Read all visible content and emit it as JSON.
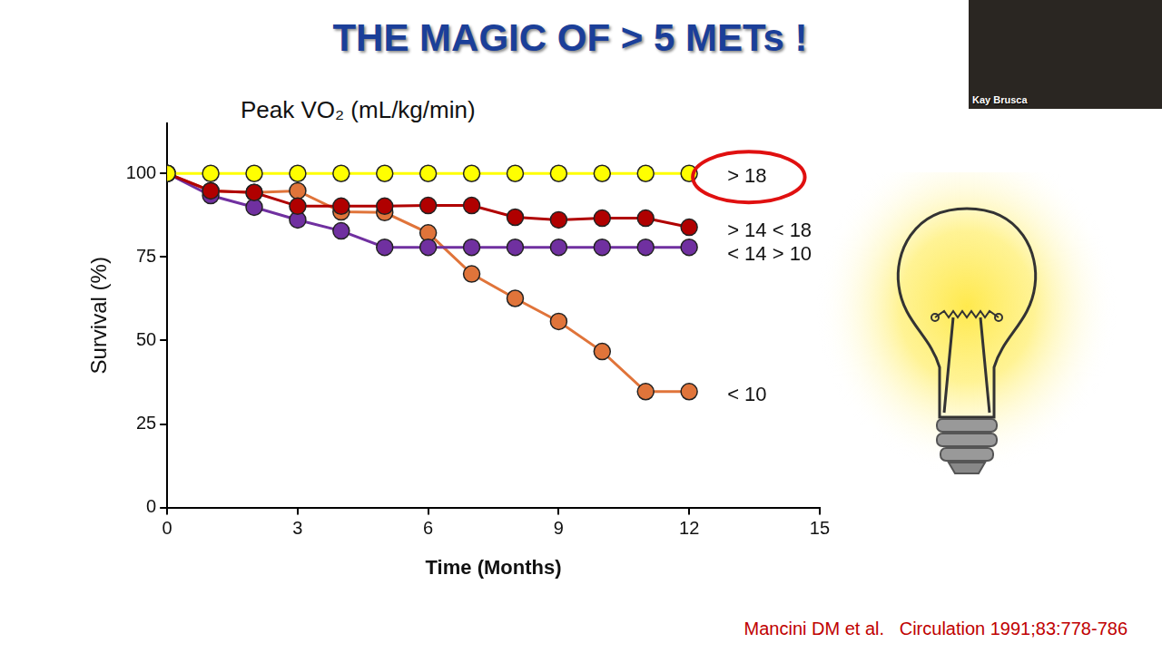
{
  "chart_data": {
    "type": "line",
    "title": "THE MAGIC OF > 5 METs !",
    "subtitle": "Peak VO₂ (mL/kg/min)",
    "x_label": "Time (Months)",
    "y_label": "Survival (%)",
    "source": "Mancini DM et al.   Circulation 1991;83:778-786",
    "speaker": "Kay Brusca",
    "x": [
      0,
      1,
      2,
      3,
      4,
      5,
      6,
      7,
      8,
      9,
      10,
      11,
      12
    ],
    "series": [
      {
        "name": "> 18",
        "color": "#ffff00",
        "values": [
          100,
          100,
          100,
          100,
          100,
          100,
          100,
          100,
          100,
          100,
          100,
          100,
          100
        ]
      },
      {
        "name": "> 14 < 18",
        "color": "#b00000",
        "values": [
          100,
          94.8,
          94.3,
          90.2,
          90.2,
          90.2,
          90.4,
          90.4,
          86.9,
          86.1,
          86.6,
          86.6,
          83.9
        ]
      },
      {
        "name": "< 14 > 10",
        "color": "#7030a0",
        "values": [
          100,
          93.4,
          89.9,
          86.1,
          82.8,
          77.9,
          77.9,
          77.9,
          77.9,
          77.9,
          77.9,
          77.9,
          77.9
        ]
      },
      {
        "name": "< 10",
        "color": "#e0743a",
        "values": [
          100,
          94.8,
          94.3,
          94.8,
          88.5,
          88.3,
          82.2,
          69.9,
          62.6,
          55.7,
          46.7,
          34.7,
          34.7
        ]
      }
    ],
    "xlim": [
      0,
      15
    ],
    "xticks": [
      0,
      3,
      6,
      9,
      12,
      15
    ],
    "ylim": [
      0,
      115
    ],
    "yticks": [
      0,
      25,
      50,
      75,
      100
    ],
    "grid": false,
    "marker": "circle",
    "line_style": "solid"
  }
}
